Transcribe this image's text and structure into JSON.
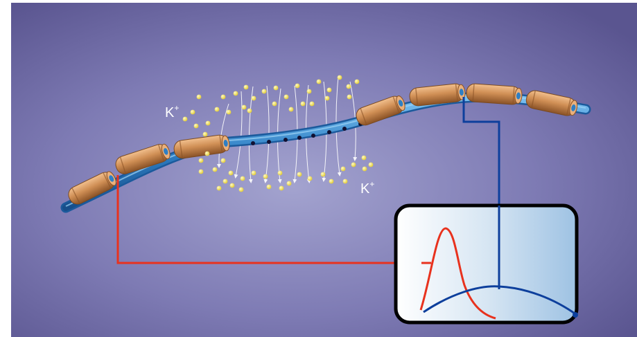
{
  "labels": {
    "ion_upper": "K",
    "ion_upper_charge": "+",
    "ion_lower": "K",
    "ion_lower_charge": "+"
  },
  "colors": {
    "background_center": "#9c9cc9",
    "background_edge": "#5a5590",
    "myelin": "#c98a52",
    "axon": "#2f7fc4",
    "ion": "#f0e24a",
    "red_trace": "#e8321e",
    "blue_trace": "#0d3f9c",
    "inset_border": "#000000"
  },
  "icons": {
    "ion": "potassium-ion-dot",
    "field_line": "current-arrow"
  }
}
